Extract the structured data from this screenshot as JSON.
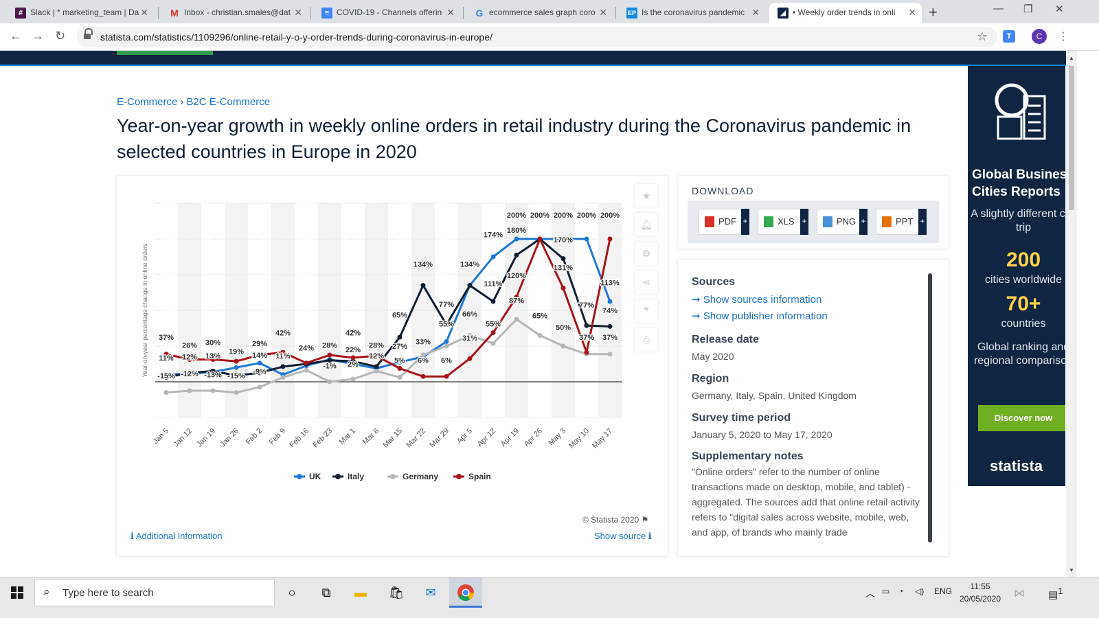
{
  "browser": {
    "tabs": [
      {
        "label": "Slack | * marketing_team | Da",
        "icon": "slack-icon"
      },
      {
        "label": "Inbox - christian.smales@dat",
        "icon": "gmail-icon"
      },
      {
        "label": "COVID-19 - Channels offerin",
        "icon": "docs-icon"
      },
      {
        "label": "ecommerce sales graph coro",
        "icon": "google-icon"
      },
      {
        "label": "Is the coronavirus pandemic",
        "icon": "ep-icon"
      },
      {
        "label": "• Weekly order trends in onli",
        "icon": "statista-icon"
      }
    ],
    "url": "statista.com/statistics/1109296/online-retail-y-o-y-order-trends-during-coronavirus-in-europe/",
    "profile_initial": "C"
  },
  "breadcrumb": {
    "level1": "E-Commerce",
    "separator": "›",
    "level2": "B2C E-Commerce"
  },
  "page_title": "Year-on-year growth in weekly online orders in retail industry during the Coronavirus pandemic in selected countries in Europe in 2020",
  "chart_footer": {
    "copyright": "© Statista 2020",
    "additional_info": "Additional Information",
    "show_source": "Show source"
  },
  "download": {
    "heading": "DOWNLOAD",
    "buttons": [
      "PDF",
      "XLS",
      "PNG",
      "PPT"
    ],
    "plus": "+"
  },
  "info": {
    "sources_label": "Sources",
    "show_sources": "➞ Show sources information",
    "show_publisher": "➞ Show publisher information",
    "release_label": "Release date",
    "release_value": "May 2020",
    "region_label": "Region",
    "region_value": "Germany, Italy, Spain, United Kingdom",
    "period_label": "Survey time period",
    "period_value": "January 5, 2020 to May 17, 2020",
    "notes_label": "Supplementary notes",
    "notes_value": "\"Online orders\" refer to the number of online transactions made on desktop, mobile, and tablet) - aggregated. The sources add that online retail activity refers to \"digital sales across website, mobile, web, and app, of brands who mainly trade"
  },
  "ad": {
    "heading": "Global Business Cities Reports",
    "sub": "A slightly different city trip",
    "stat1_num": "200",
    "stat1_label": "cities worldwide",
    "stat2_num": "70+",
    "stat2_label": "countries",
    "desc": "Global ranking and regional comparison",
    "button": "Discover now",
    "logo": "statista"
  },
  "taskbar": {
    "search_placeholder": "Type here to search",
    "lang": "ENG",
    "time": "11:55",
    "date": "20/05/2020",
    "notif_count": "1"
  },
  "colors": {
    "uk": "#1f78d4",
    "italy": "#0f1e32",
    "germany": "#b7b7b7",
    "spain": "#a9131a",
    "accent": "#1a73c8",
    "navy": "#0f2541"
  },
  "chart_data": {
    "type": "line",
    "ylabel": "Year-on-year percentage change in online orders",
    "categories": [
      "Jan 5",
      "Jan 12",
      "Jan 19",
      "Jan 26",
      "Feb 2",
      "Feb 9",
      "Feb 16",
      "Feb 23",
      "Mar 1",
      "Mar 8",
      "Mar 15",
      "Mar 22",
      "Mar 29",
      "Apr 5",
      "Apr 12",
      "Apr 19",
      "Apr 26",
      "May 3",
      "May 10",
      "May 17"
    ],
    "ylim": [
      -40,
      200
    ],
    "series": [
      {
        "name": "UK",
        "color": "#1f78d4",
        "values": [
          8,
          9,
          11,
          16,
          21,
          8,
          18,
          25,
          20,
          15,
          22,
          28,
          45,
          108,
          140,
          160,
          160,
          160,
          160,
          90
        ]
      },
      {
        "name": "Italy",
        "color": "#0f1e32",
        "values": [
          5,
          10,
          12,
          7,
          10,
          17,
          20,
          24,
          23,
          17,
          50,
          108,
          64,
          108,
          90,
          142,
          160,
          138,
          63,
          62
        ]
      },
      {
        "name": "Germany",
        "color": "#b7b7b7",
        "values": [
          -12,
          -10,
          -10,
          -12,
          -6,
          5,
          13,
          0,
          3,
          12,
          5,
          30,
          40,
          52,
          43,
          70,
          52,
          40,
          31,
          31
        ]
      },
      {
        "name": "Spain",
        "color": "#a9131a",
        "values": [
          31,
          25,
          25,
          23,
          30,
          33,
          21,
          30,
          27,
          29,
          15,
          6,
          6,
          26,
          55,
          95,
          160,
          105,
          33,
          160
        ]
      }
    ],
    "data_labels": [
      {
        "text": "37%",
        "x": 0,
        "y": 47
      },
      {
        "text": "11%",
        "x": 0,
        "y": 24
      },
      {
        "text": "-15%",
        "x": 0,
        "y": 4
      },
      {
        "text": "26%",
        "x": 1,
        "y": 38
      },
      {
        "text": "12%",
        "x": 1,
        "y": 25
      },
      {
        "text": "-12%",
        "x": 1,
        "y": 6
      },
      {
        "text": "30%",
        "x": 2,
        "y": 41
      },
      {
        "text": "13%",
        "x": 2,
        "y": 26
      },
      {
        "text": "-13%",
        "x": 2,
        "y": 5
      },
      {
        "text": "19%",
        "x": 3,
        "y": 31
      },
      {
        "text": "-15%",
        "x": 3,
        "y": 4
      },
      {
        "text": "29%",
        "x": 4,
        "y": 40
      },
      {
        "text": "14%",
        "x": 4,
        "y": 27
      },
      {
        "text": "-9%",
        "x": 4,
        "y": 9
      },
      {
        "text": "42%",
        "x": 5,
        "y": 52
      },
      {
        "text": "11%",
        "x": 5,
        "y": 26
      },
      {
        "text": "24%",
        "x": 6,
        "y": 35
      },
      {
        "text": "28%",
        "x": 7,
        "y": 38
      },
      {
        "text": "-1%",
        "x": 7,
        "y": 15
      },
      {
        "text": "42%",
        "x": 8,
        "y": 52
      },
      {
        "text": "22%",
        "x": 8,
        "y": 33
      },
      {
        "text": "2%",
        "x": 8,
        "y": 17
      },
      {
        "text": "28%",
        "x": 9,
        "y": 38
      },
      {
        "text": "12%",
        "x": 9,
        "y": 26
      },
      {
        "text": "65%",
        "x": 10,
        "y": 72
      },
      {
        "text": "27%",
        "x": 10,
        "y": 37
      },
      {
        "text": "5%",
        "x": 10,
        "y": 21
      },
      {
        "text": "134%",
        "x": 11,
        "y": 129
      },
      {
        "text": "33%",
        "x": 11,
        "y": 42
      },
      {
        "text": "6%",
        "x": 11,
        "y": 21
      },
      {
        "text": "77%",
        "x": 12,
        "y": 84
      },
      {
        "text": "55%",
        "x": 12,
        "y": 62
      },
      {
        "text": "6%",
        "x": 12,
        "y": 21
      },
      {
        "text": "134%",
        "x": 13,
        "y": 129
      },
      {
        "text": "66%",
        "x": 13,
        "y": 73
      },
      {
        "text": "31%",
        "x": 13,
        "y": 46
      },
      {
        "text": "174%",
        "x": 14,
        "y": 162
      },
      {
        "text": "111%",
        "x": 14,
        "y": 107
      },
      {
        "text": "55%",
        "x": 14,
        "y": 62
      },
      {
        "text": "200%",
        "x": 15,
        "y": 184
      },
      {
        "text": "180%",
        "x": 15,
        "y": 167
      },
      {
        "text": "120%",
        "x": 15,
        "y": 116
      },
      {
        "text": "87%",
        "x": 15,
        "y": 88
      },
      {
        "text": "200%",
        "x": 16,
        "y": 184
      },
      {
        "text": "65%",
        "x": 16,
        "y": 71
      },
      {
        "text": "200%",
        "x": 17,
        "y": 184
      },
      {
        "text": "170%",
        "x": 17,
        "y": 156
      },
      {
        "text": "131%",
        "x": 17,
        "y": 125
      },
      {
        "text": "50%",
        "x": 17,
        "y": 58
      },
      {
        "text": "200%",
        "x": 18,
        "y": 184
      },
      {
        "text": "77%",
        "x": 18,
        "y": 83
      },
      {
        "text": "37%",
        "x": 18,
        "y": 47
      },
      {
        "text": "200%",
        "x": 19,
        "y": 184
      },
      {
        "text": "113%",
        "x": 19,
        "y": 108
      },
      {
        "text": "74%",
        "x": 19,
        "y": 77
      },
      {
        "text": "37%",
        "x": 19,
        "y": 47
      }
    ],
    "legend_position": "bottom"
  }
}
